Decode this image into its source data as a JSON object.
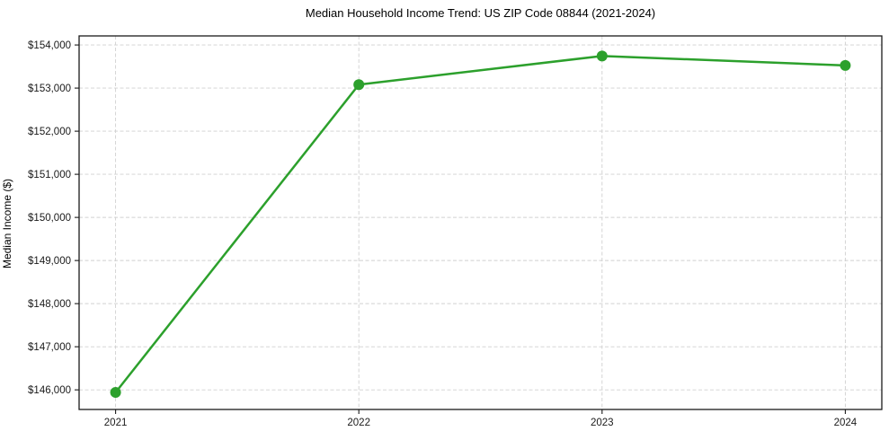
{
  "chart_data": {
    "type": "line",
    "title": "Median Household Income Trend: US ZIP Code 08844 (2021-2024)",
    "xlabel": "",
    "ylabel": "Median Income ($)",
    "x": [
      2021,
      2022,
      2023,
      2024
    ],
    "values": [
      145940,
      153080,
      153745,
      153525
    ],
    "series_name": "Median Household Income",
    "xtick_labels": [
      "2021",
      "2022",
      "2023",
      "2024"
    ],
    "ytick_values": [
      146000,
      147000,
      148000,
      149000,
      150000,
      151000,
      152000,
      153000,
      154000
    ],
    "ytick_labels": [
      "$146,000",
      "$147,000",
      "$148,000",
      "$149,000",
      "$150,000",
      "$151,000",
      "$152,000",
      "$153,000",
      "$154,000"
    ],
    "xlim": [
      2020.85,
      2024.15
    ],
    "ylim": [
      145545,
      154210
    ],
    "grid": true,
    "grid_style": "dashed",
    "legend": false,
    "line_color": "#2ca02c",
    "marker": "circle",
    "grid_color": "#d0d0d0",
    "axis_color": "#1a1a1a",
    "background_color": "#ffffff"
  }
}
